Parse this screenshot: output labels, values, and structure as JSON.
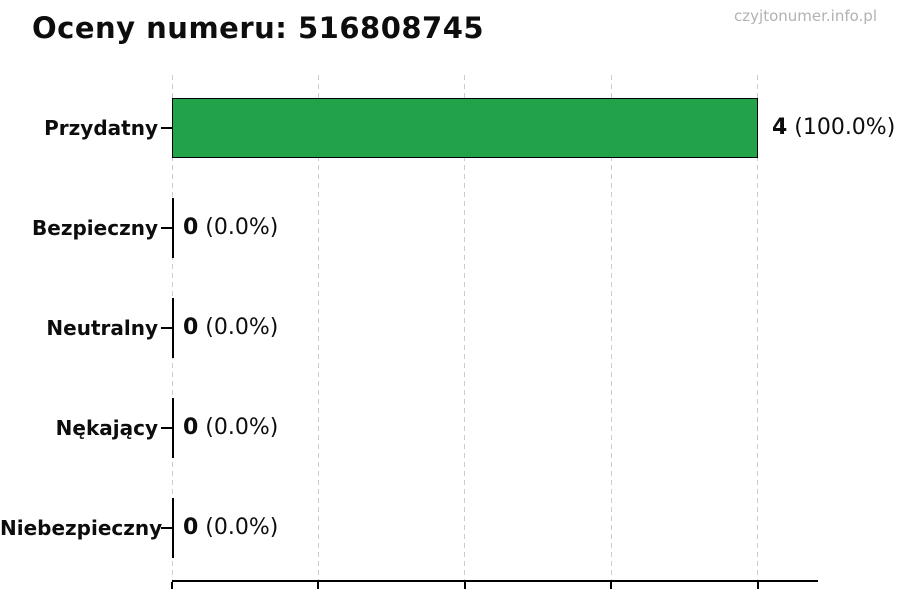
{
  "chart_data": {
    "type": "bar",
    "orientation": "horizontal",
    "title": "Oceny numeru: 516808745",
    "watermark": "czyjtonumer.info.pl",
    "categories": [
      "Przydatny",
      "Bezpieczny",
      "Neutralny",
      "Nękający",
      "Niebezpieczny"
    ],
    "values": [
      4,
      0,
      0,
      0,
      0
    ],
    "value_labels": [
      "4",
      "0",
      "0",
      "0",
      "0"
    ],
    "percent_labels": [
      "(100.0%)",
      "(0.0%)",
      "(0.0%)",
      "(0.0%)",
      "(0.0%)"
    ],
    "xlim": [
      0,
      4.41
    ],
    "x_gridline_values": [
      0,
      1,
      2,
      3,
      4
    ],
    "grid": true,
    "legend": "none",
    "xlabel": "",
    "ylabel": "",
    "bar_color": "#22a34a",
    "bar_edge_color": "#000000",
    "grid_color": "#cccccc",
    "axis_color": "#000000",
    "text_color": "#0d0d0d",
    "watermark_color": "#b2b2b2"
  }
}
